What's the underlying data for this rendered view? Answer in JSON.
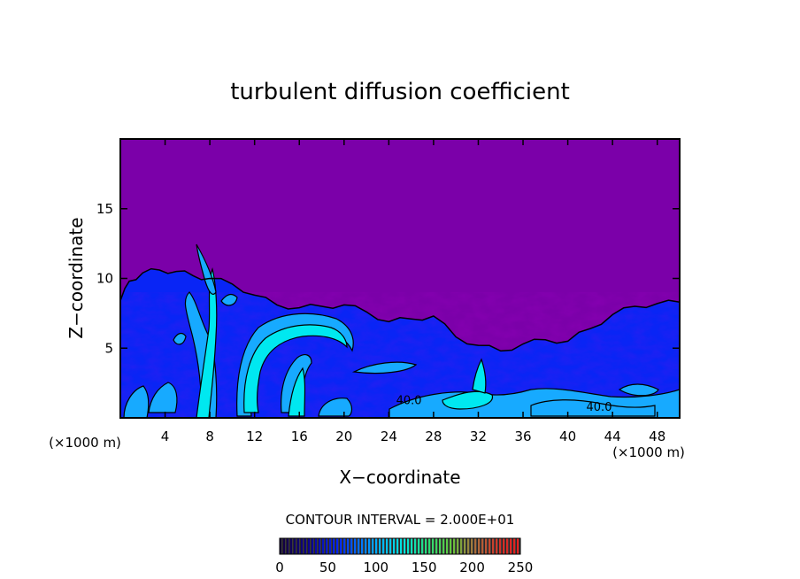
{
  "chart_data": {
    "type": "heatmap",
    "title": "turbulent diffusion coefficient",
    "xlabel": "X−coordinate",
    "ylabel": "Z−coordinate",
    "x_unit_left": "(×1000 m)",
    "x_unit_right": "(×1000 m)",
    "xlim": [
      0,
      50
    ],
    "ylim": [
      0,
      20
    ],
    "x_ticks": [
      4,
      8,
      12,
      16,
      20,
      24,
      28,
      32,
      36,
      40,
      44,
      48
    ],
    "x_tick_labels": [
      "4",
      "8",
      "12",
      "16",
      "20",
      "24",
      "28",
      "32",
      "36",
      "40",
      "44",
      "48"
    ],
    "y_ticks": [
      5,
      10,
      15
    ],
    "y_tick_labels": [
      "5",
      "10",
      "15"
    ],
    "contour_interval_text": "CONTOUR INTERVAL = 2.000E+01",
    "contour_labels": [
      {
        "text": "40.0",
        "x": 25.8,
        "y": 1.0
      },
      {
        "text": "40.0",
        "x": 42.8,
        "y": 0.5
      }
    ],
    "colorbar": {
      "min": 0,
      "max": 250,
      "ticks": [
        0,
        50,
        100,
        150,
        200,
        250
      ],
      "tick_labels": [
        "0",
        "50",
        "100",
        "150",
        "200",
        "250"
      ]
    },
    "background_value": 0,
    "turbulent_layer_top": [
      [
        0,
        8.4
      ],
      [
        0.8,
        9.8
      ],
      [
        2,
        10.4
      ],
      [
        3.5,
        10.6
      ],
      [
        5,
        10.5
      ],
      [
        6.5,
        10.2
      ],
      [
        8,
        10.0
      ],
      [
        10,
        9.6
      ],
      [
        12,
        8.8
      ],
      [
        14,
        8.1
      ],
      [
        16,
        7.9
      ],
      [
        18,
        8.0
      ],
      [
        20,
        8.1
      ],
      [
        22,
        7.6
      ],
      [
        24,
        6.9
      ],
      [
        26,
        7.1
      ],
      [
        28,
        7.3
      ],
      [
        30,
        5.8
      ],
      [
        32,
        5.2
      ],
      [
        34,
        4.8
      ],
      [
        36,
        5.3
      ],
      [
        38,
        5.6
      ],
      [
        40,
        5.5
      ],
      [
        42,
        6.4
      ],
      [
        44,
        7.4
      ],
      [
        46,
        8.0
      ],
      [
        48,
        8.2
      ],
      [
        50,
        8.3
      ]
    ],
    "colors": {
      "background": "#7b00a9",
      "layer": "#0a2cff",
      "layer_deep": "#0000b8",
      "inner": "#17aaff",
      "core": "#00e8f0",
      "contour": "#000000"
    }
  }
}
